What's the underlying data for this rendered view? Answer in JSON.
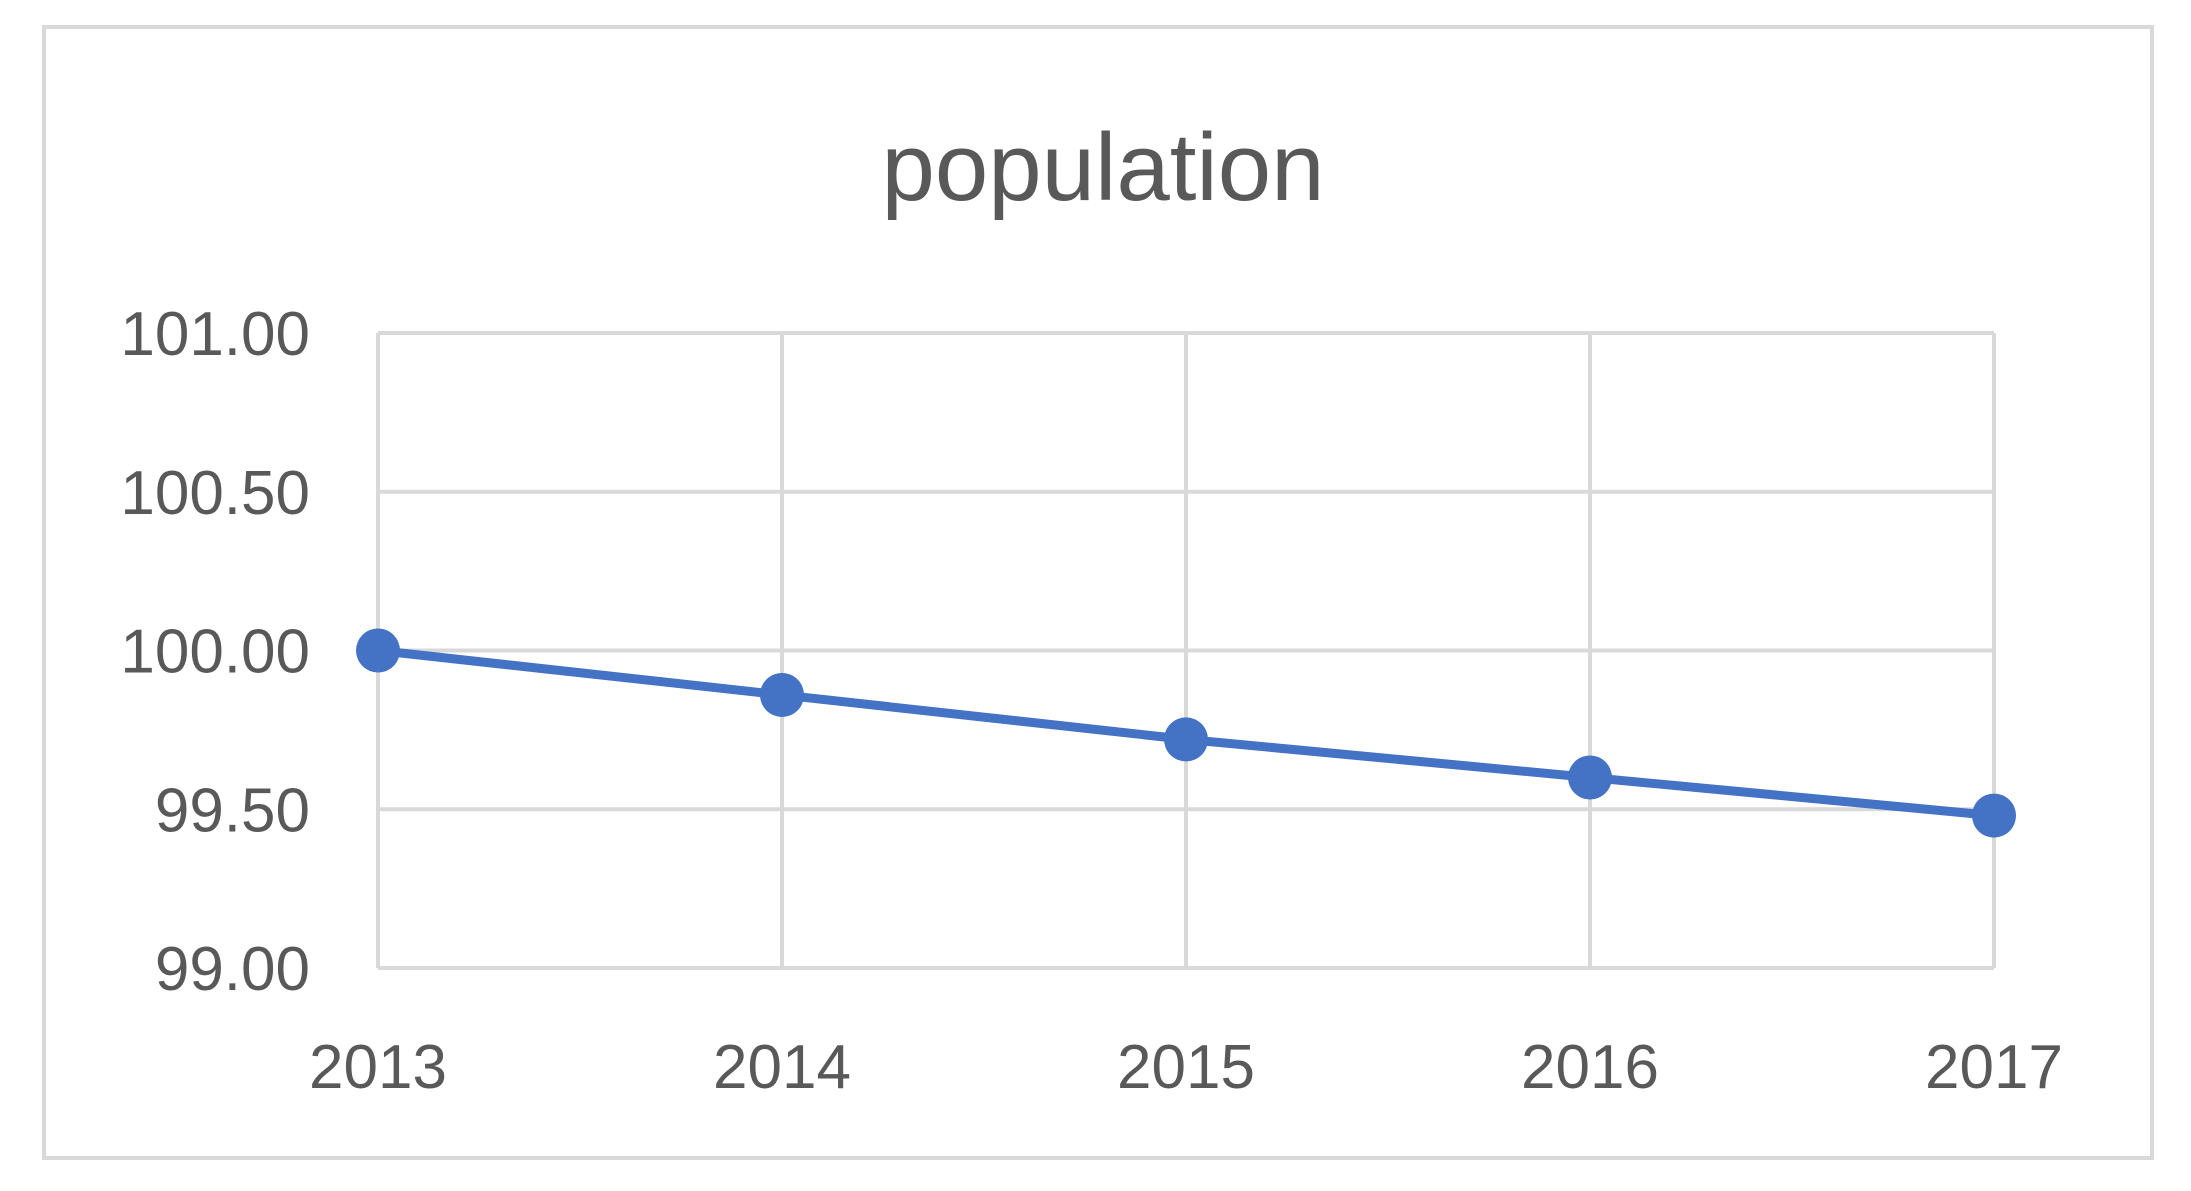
{
  "chart_data": {
    "type": "line",
    "title": "population",
    "xlabel": "",
    "ylabel": "",
    "categories": [
      "2013",
      "2014",
      "2015",
      "2016",
      "2017"
    ],
    "series": [
      {
        "values": [
          100.0,
          99.86,
          99.72,
          99.6,
          99.48
        ]
      }
    ],
    "ylim": [
      99.0,
      101.0
    ],
    "yticks": [
      "101.00",
      "100.50",
      "100.00",
      "99.50",
      "99.00"
    ],
    "grid": true,
    "legend": "none",
    "colors": {
      "line": "#4472c4",
      "grid": "#d9d9d9",
      "text": "#595959"
    }
  }
}
